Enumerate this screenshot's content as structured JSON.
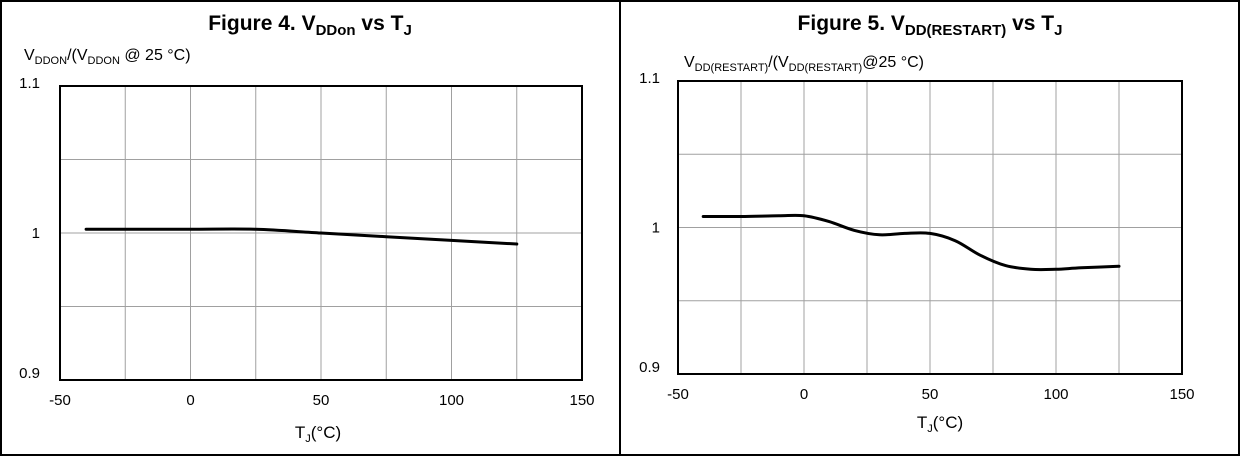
{
  "chart_data": [
    {
      "type": "line",
      "title": "Figure 4. V",
      "title_sub": "DDon",
      "title_tail": " vs T",
      "title_tail_sub": "J",
      "ylabel_parts": [
        {
          "t": "V",
          "sub": false
        },
        {
          "t": "DDON",
          "sub": true
        },
        {
          "t": "/(V",
          "sub": false
        },
        {
          "t": "DDON",
          "sub": true
        },
        {
          "t": " @ 25 °C)",
          "sub": false
        }
      ],
      "xlabel": "T",
      "xlabel_sub": "J",
      "xlabel_tail": "(°C)",
      "xlim": [
        -50,
        150
      ],
      "ylim": [
        0.9,
        1.1
      ],
      "x_ticks": [
        "-50",
        "0",
        "50",
        "100",
        "150"
      ],
      "y_ticks": [
        "0.9",
        "1",
        "1.1"
      ],
      "grid": true,
      "x": [
        -40,
        -25,
        0,
        25,
        50,
        75,
        100,
        125
      ],
      "y": [
        1.0025,
        1.0025,
        1.0025,
        1.0025,
        1.0,
        0.9975,
        0.995,
        0.9925
      ]
    },
    {
      "type": "line",
      "title": "Figure 5. V",
      "title_sub": "DD(RESTART)",
      "title_tail": " vs T",
      "title_tail_sub": "J",
      "ylabel_parts": [
        {
          "t": "V",
          "sub": false
        },
        {
          "t": "DD(RESTART)",
          "sub": true
        },
        {
          "t": "/(V",
          "sub": false
        },
        {
          "t": "DD(RESTART)",
          "sub": true
        },
        {
          "t": "@25 °C)",
          "sub": false
        }
      ],
      "xlabel": "T",
      "xlabel_sub": "J",
      "xlabel_tail": "(°C)",
      "xlim": [
        -50,
        150
      ],
      "ylim": [
        0.9,
        1.1
      ],
      "x_ticks": [
        "-50",
        "0",
        "50",
        "100",
        "150"
      ],
      "y_ticks": [
        "0.9",
        "1",
        "1.1"
      ],
      "grid": true,
      "x": [
        -40,
        -25,
        -10,
        0,
        10,
        20,
        30,
        40,
        50,
        60,
        70,
        80,
        90,
        100,
        110,
        125
      ],
      "y": [
        1.0075,
        1.0075,
        1.008,
        1.008,
        1.004,
        0.998,
        0.995,
        0.996,
        0.996,
        0.991,
        0.981,
        0.974,
        0.9715,
        0.9715,
        0.9725,
        0.9735
      ]
    }
  ]
}
